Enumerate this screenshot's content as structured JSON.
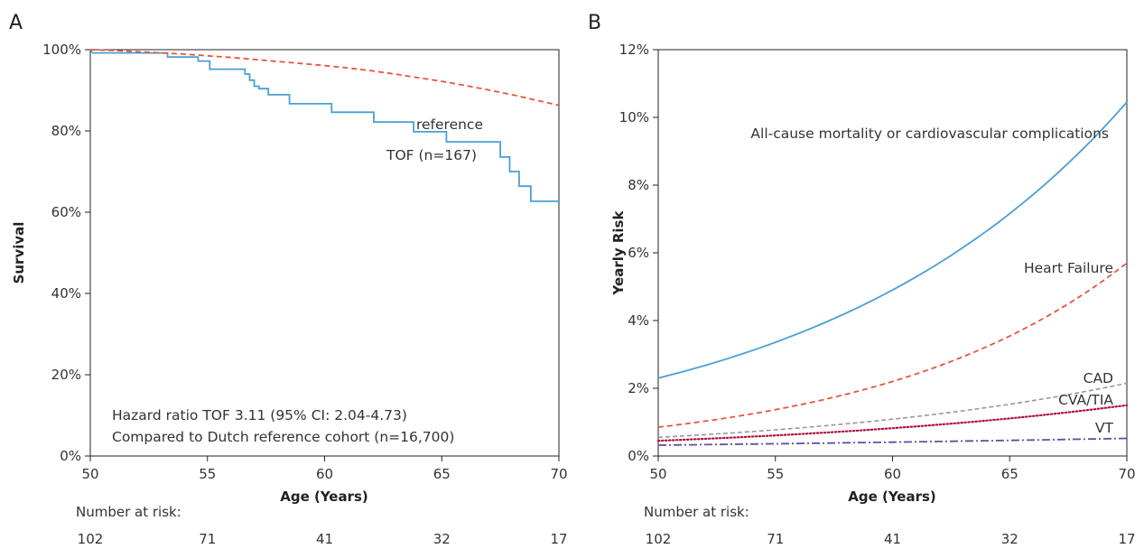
{
  "chart_data": [
    {
      "panel": "A",
      "type": "line",
      "title": "",
      "xlabel": "Age (Years)",
      "ylabel": "Survival",
      "xlim": [
        50,
        70
      ],
      "ylim": [
        0,
        100
      ],
      "x_ticks": [
        50,
        55,
        60,
        65,
        70
      ],
      "y_ticks": [
        "0%",
        "20%",
        "40%",
        "60%",
        "80%",
        "100%"
      ],
      "y_tick_values": [
        0,
        20,
        40,
        60,
        80,
        100
      ],
      "grid": false,
      "series": [
        {
          "name": "TOF (n=167)",
          "style": "step",
          "color": "#4a9fd5",
          "points": [
            [
              50,
              100
            ],
            [
              50.1,
              99.2
            ],
            [
              53.3,
              99.2
            ],
            [
              53.3,
              98.2
            ],
            [
              54.6,
              98.2
            ],
            [
              54.6,
              97.2
            ],
            [
              55.1,
              97.2
            ],
            [
              55.1,
              95.2
            ],
            [
              56.6,
              95.2
            ],
            [
              56.6,
              94.0
            ],
            [
              56.8,
              94.0
            ],
            [
              56.8,
              92.5
            ],
            [
              57.0,
              92.5
            ],
            [
              57.0,
              91.0
            ],
            [
              57.2,
              91.0
            ],
            [
              57.2,
              90.4
            ],
            [
              57.6,
              90.4
            ],
            [
              57.6,
              88.9
            ],
            [
              58.5,
              88.9
            ],
            [
              58.5,
              86.7
            ],
            [
              60.3,
              86.7
            ],
            [
              60.3,
              84.6
            ],
            [
              62.1,
              84.6
            ],
            [
              62.1,
              82.2
            ],
            [
              63.8,
              82.2
            ],
            [
              63.8,
              79.8
            ],
            [
              65.2,
              79.8
            ],
            [
              65.2,
              77.3
            ],
            [
              67.5,
              77.3
            ],
            [
              67.5,
              73.6
            ],
            [
              67.9,
              73.6
            ],
            [
              67.9,
              70.0
            ],
            [
              68.3,
              70.0
            ],
            [
              68.3,
              66.4
            ],
            [
              68.8,
              66.4
            ],
            [
              68.8,
              62.7
            ],
            [
              70,
              62.7
            ]
          ]
        },
        {
          "name": "reference",
          "style": "dashed",
          "color": "#e8543c",
          "points": [
            [
              50,
              100
            ],
            [
              51,
              99.8
            ],
            [
              52,
              99.5
            ],
            [
              53,
              99.2
            ],
            [
              54,
              98.9
            ],
            [
              55,
              98.5
            ],
            [
              56,
              98.1
            ],
            [
              57,
              97.6
            ],
            [
              58,
              97.1
            ],
            [
              59,
              96.6
            ],
            [
              60,
              96.1
            ],
            [
              61,
              95.5
            ],
            [
              62,
              94.8
            ],
            [
              63,
              94.0
            ],
            [
              64,
              93.1
            ],
            [
              65,
              92.2
            ],
            [
              66,
              91.2
            ],
            [
              67,
              90.1
            ],
            [
              68,
              88.9
            ],
            [
              69,
              87.6
            ],
            [
              70,
              86.3
            ]
          ]
        }
      ],
      "annotations": [
        "Hazard ratio TOF 3.11 (95% CI: 2.04-4.73)",
        "Compared to Dutch reference cohort (n=16,700)"
      ],
      "risk_table": {
        "label": "Number at risk:",
        "values": [
          "102",
          "71",
          "41",
          "32",
          "17"
        ]
      }
    },
    {
      "panel": "B",
      "type": "line",
      "title": "",
      "xlabel": "Age (Years)",
      "ylabel": "Yearly Risk",
      "xlim": [
        50,
        70
      ],
      "ylim": [
        0,
        12
      ],
      "x_ticks": [
        50,
        55,
        60,
        65,
        70
      ],
      "y_ticks": [
        "0%",
        "2%",
        "4%",
        "6%",
        "8%",
        "10%",
        "12%"
      ],
      "y_tick_values": [
        0,
        2,
        4,
        6,
        8,
        10,
        12
      ],
      "grid": false,
      "series": [
        {
          "name": "All-cause mortality or cardiovascular complications",
          "style": "solid",
          "color": "#4a9fd5",
          "start": 2.3,
          "end": 10.45
        },
        {
          "name": "Heart Failure",
          "style": "dashed",
          "color": "#e8543c",
          "start": 0.85,
          "end": 5.7
        },
        {
          "name": "CAD",
          "style": "dashed-gray",
          "color": "#999999",
          "start": 0.55,
          "end": 2.15
        },
        {
          "name": "CVA/TIA",
          "style": "dotted",
          "color": "#b0123a",
          "start": 0.45,
          "end": 1.5
        },
        {
          "name": "VT",
          "style": "dashdot",
          "color": "#5b4fa8",
          "start": 0.32,
          "end": 0.52
        }
      ],
      "risk_table": {
        "label": "Number at risk:",
        "values": [
          "102",
          "71",
          "41",
          "32",
          "17"
        ]
      }
    }
  ]
}
